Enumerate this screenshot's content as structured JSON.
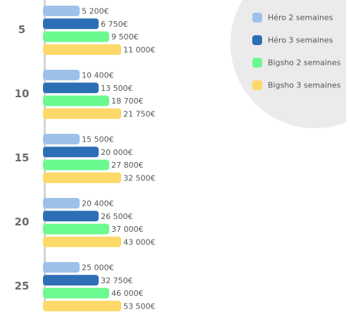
{
  "chart_data": {
    "type": "bar",
    "orientation": "horizontal",
    "categories": [
      "5",
      "10",
      "15",
      "20",
      "25"
    ],
    "series": [
      {
        "name": "Héro 2 semaines",
        "color": "#9dc1e8",
        "values": [
          5200,
          10400,
          15500,
          20400,
          25000
        ],
        "labels": [
          "5 200€",
          "10 400€",
          "15 500€",
          "20 400€",
          "25 000€"
        ]
      },
      {
        "name": "Héro 3 semaines",
        "color": "#2d6fb6",
        "values": [
          6750,
          13500,
          20000,
          26500,
          32750
        ],
        "labels": [
          "6 750€",
          "13 500€",
          "20 000€",
          "26 500€",
          "32 750€"
        ]
      },
      {
        "name": "Bigsho 2 semaines",
        "color": "#6bfa8f",
        "values": [
          9500,
          18700,
          27800,
          37000,
          46000
        ],
        "labels": [
          "9 500€",
          "18 700€",
          "27 800€",
          "37 000€",
          "46 000€"
        ]
      },
      {
        "name": "Bigsho 3 semaines",
        "color": "#fdd96a",
        "values": [
          11000,
          21750,
          32500,
          43000,
          53500
        ],
        "labels": [
          "11 000€",
          "21 750€",
          "32 500€",
          "43 000€",
          "53 500€"
        ]
      }
    ],
    "legend_position": "top-right",
    "axis_color": "#d3d3d3",
    "legend_background": "#ebebeb"
  }
}
